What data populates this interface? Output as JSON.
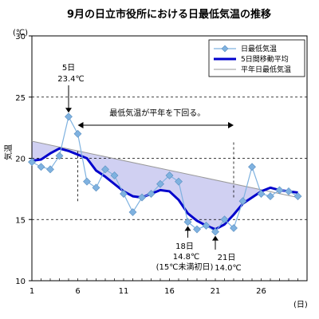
{
  "chart_data": {
    "type": "line",
    "title": "9月の日立市役所における日最低気温の推移",
    "ylabel": "気温",
    "yunit": "(℃)",
    "xunit": "(日)",
    "xlim": [
      1,
      30
    ],
    "ylim": [
      10,
      30
    ],
    "x_ticks": [
      1,
      6,
      11,
      16,
      21,
      26
    ],
    "y_ticks": [
      10,
      15,
      20,
      25,
      30
    ],
    "y_gridlines": [
      15,
      20,
      25
    ],
    "series": [
      {
        "name": "日最低気温",
        "color": "#7fb2e0",
        "marker": "diamond",
        "x": [
          1,
          2,
          3,
          4,
          5,
          6,
          7,
          8,
          9,
          10,
          11,
          12,
          13,
          14,
          15,
          16,
          17,
          18,
          19,
          20,
          21,
          22,
          23,
          24,
          25,
          26,
          27,
          28,
          29,
          30
        ],
        "y": [
          19.7,
          19.3,
          19.1,
          20.2,
          23.4,
          22.0,
          18.1,
          17.6,
          19.1,
          18.6,
          17.1,
          15.6,
          16.8,
          17.1,
          17.9,
          18.6,
          18.1,
          14.8,
          14.2,
          14.5,
          14.0,
          15.0,
          14.3,
          16.5,
          19.3,
          17.1,
          16.9,
          17.4,
          17.3,
          16.9
        ]
      },
      {
        "name": "5日間移動平均",
        "color": "#0000cc",
        "x": [
          1,
          2,
          3,
          4,
          5,
          6,
          7,
          8,
          9,
          10,
          11,
          12,
          13,
          14,
          15,
          16,
          17,
          18,
          19,
          20,
          21,
          22,
          23,
          24,
          25,
          26,
          27,
          28,
          29,
          30
        ],
        "y": [
          19.8,
          19.9,
          20.4,
          20.8,
          20.6,
          20.3,
          20.0,
          19.0,
          18.5,
          17.9,
          17.3,
          16.9,
          16.8,
          17.1,
          17.4,
          17.3,
          16.6,
          15.5,
          14.9,
          14.5,
          14.2,
          14.6,
          15.4,
          16.3,
          16.8,
          17.3,
          17.6,
          17.4,
          17.3,
          17.2
        ]
      },
      {
        "name": "平年日最低気温",
        "color": "#9a9a9a",
        "x": [
          1,
          30
        ],
        "y": [
          21.4,
          16.8
        ]
      }
    ],
    "shaded_region": {
      "meaning": "daily minimum below normal",
      "fill": "#c8c8f0",
      "x_start": 6,
      "x_end": 23
    },
    "annotations": [
      {
        "lines": [
          "5日",
          "23.4℃"
        ],
        "x": 5,
        "y": 23.4
      },
      {
        "lines": [
          "18日",
          "14.8℃",
          "(15℃未満初日)"
        ],
        "x": 18,
        "y": 14.8
      },
      {
        "lines": [
          "21日",
          "14.0℃"
        ],
        "x": 21,
        "y": 14.0
      },
      {
        "lines": [
          "最低気温が平年を下回る。"
        ],
        "x_from": 6,
        "x_to": 23
      }
    ],
    "legend": {
      "position": "top-right"
    }
  }
}
